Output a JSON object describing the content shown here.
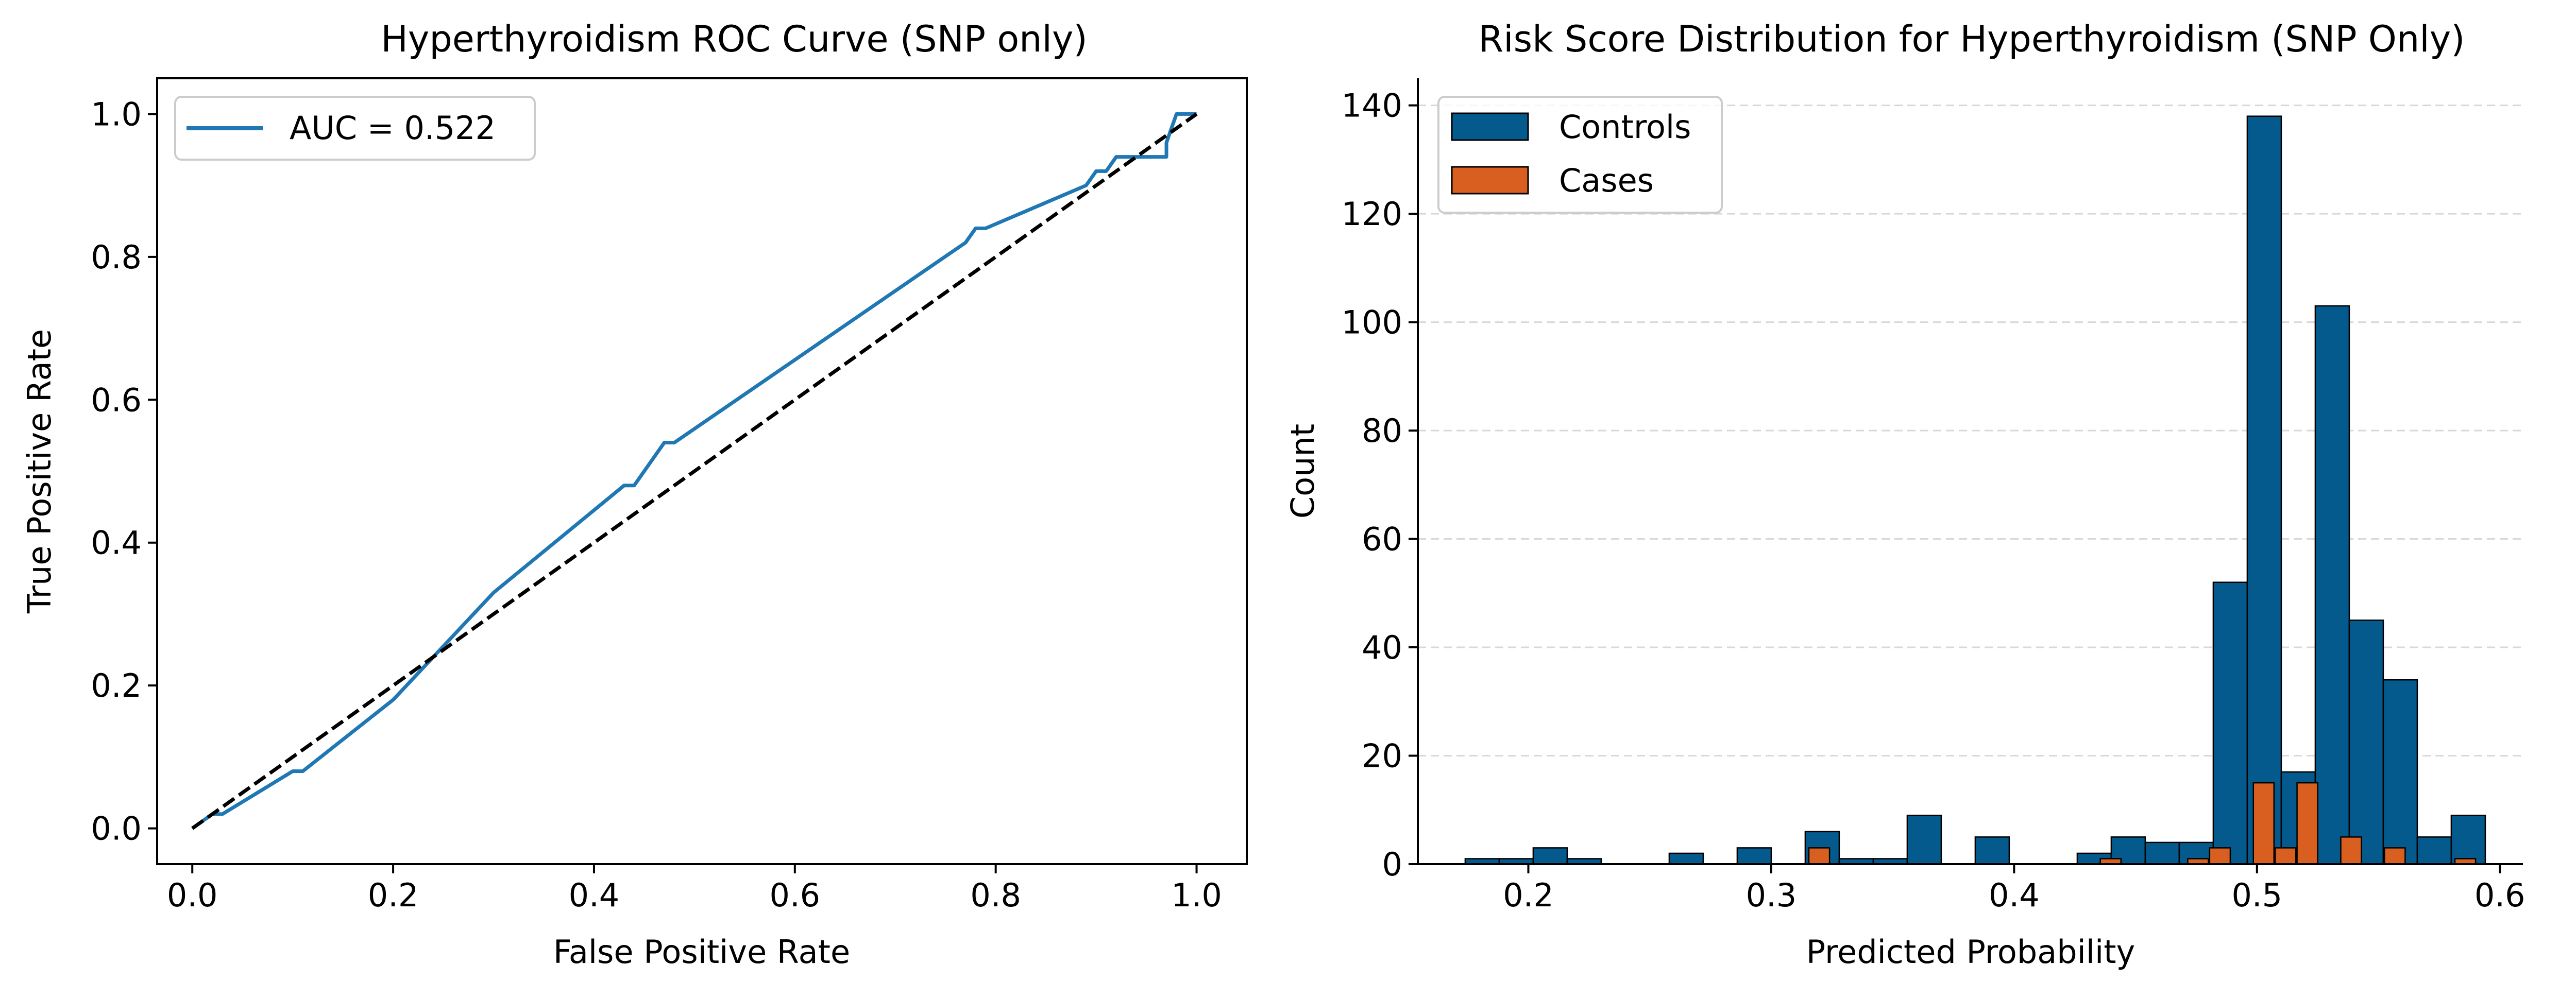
{
  "colors": {
    "roc_line": "#1f77b4",
    "diagonal": "#000000",
    "controls": "#045a8d",
    "cases": "#d95f20",
    "bar_edge": "#000000",
    "grid": "#d8d8d8"
  },
  "chart_data": [
    {
      "type": "line",
      "title": "Hyperthyroidism ROC Curve (SNP only)",
      "xlabel": "False Positive Rate",
      "ylabel": "True Positive Rate",
      "xlim": [
        -0.035,
        1.05
      ],
      "ylim": [
        -0.05,
        1.05
      ],
      "xticks": [
        0.0,
        0.2,
        0.4,
        0.6,
        0.8,
        1.0
      ],
      "xtick_labels": [
        "0.0",
        "0.2",
        "0.4",
        "0.6",
        "0.8",
        "1.0"
      ],
      "yticks": [
        0.0,
        0.2,
        0.4,
        0.6,
        0.8,
        1.0
      ],
      "ytick_labels": [
        "0.0",
        "0.2",
        "0.4",
        "0.6",
        "0.8",
        "1.0"
      ],
      "legend_position": "top-left",
      "series": [
        {
          "name": "AUC = 0.522",
          "style": "solid",
          "x": [
            0.0,
            0.02,
            0.03,
            0.1,
            0.11,
            0.2,
            0.3,
            0.43,
            0.44,
            0.47,
            0.48,
            0.77,
            0.78,
            0.79,
            0.89,
            0.9,
            0.91,
            0.92,
            0.93,
            0.94,
            0.96,
            0.97,
            0.97,
            0.98,
            1.0
          ],
          "y": [
            0.0,
            0.02,
            0.02,
            0.08,
            0.08,
            0.18,
            0.33,
            0.48,
            0.48,
            0.54,
            0.54,
            0.82,
            0.84,
            0.84,
            0.9,
            0.92,
            0.92,
            0.94,
            0.94,
            0.94,
            0.94,
            0.94,
            0.96,
            1.0,
            1.0
          ]
        },
        {
          "style": "dashed",
          "x": [
            0.0,
            1.0
          ],
          "y": [
            0.0,
            1.0
          ]
        }
      ]
    },
    {
      "type": "bar",
      "subtype": "overlaid-histogram",
      "title": "Risk Score Distribution for Hyperthyroidism (SNP Only)",
      "xlabel": "Predicted Probability",
      "ylabel": "Count",
      "xlim": [
        0.1545,
        0.6095
      ],
      "ylim": [
        0,
        145
      ],
      "xticks": [
        0.2,
        0.3,
        0.4,
        0.5,
        0.6
      ],
      "xtick_labels": [
        "0.2",
        "0.3",
        "0.4",
        "0.5",
        "0.6"
      ],
      "yticks": [
        0,
        20,
        40,
        60,
        80,
        100,
        120,
        140
      ],
      "ytick_labels": [
        "0",
        "20",
        "40",
        "60",
        "80",
        "100",
        "120",
        "140"
      ],
      "grid": "y-dashed",
      "legend_position": "top-left",
      "series": [
        {
          "name": "Controls",
          "bin_width": 0.014,
          "bins": [
            {
              "x0": 0.174,
              "count": 1
            },
            {
              "x0": 0.188,
              "count": 1
            },
            {
              "x0": 0.202,
              "count": 3
            },
            {
              "x0": 0.216,
              "count": 1
            },
            {
              "x0": 0.258,
              "count": 2
            },
            {
              "x0": 0.286,
              "count": 3
            },
            {
              "x0": 0.314,
              "count": 6
            },
            {
              "x0": 0.328,
              "count": 1
            },
            {
              "x0": 0.342,
              "count": 1
            },
            {
              "x0": 0.356,
              "count": 9
            },
            {
              "x0": 0.384,
              "count": 5
            },
            {
              "x0": 0.426,
              "count": 2
            },
            {
              "x0": 0.44,
              "count": 5
            },
            {
              "x0": 0.454,
              "count": 4
            },
            {
              "x0": 0.468,
              "count": 4
            },
            {
              "x0": 0.482,
              "count": 52
            },
            {
              "x0": 0.496,
              "count": 138
            },
            {
              "x0": 0.51,
              "count": 17
            },
            {
              "x0": 0.524,
              "count": 103
            },
            {
              "x0": 0.538,
              "count": 45
            },
            {
              "x0": 0.552,
              "count": 34
            },
            {
              "x0": 0.566,
              "count": 5
            },
            {
              "x0": 0.58,
              "count": 9
            }
          ]
        },
        {
          "name": "Cases",
          "bin_width": 0.0085,
          "bins": [
            {
              "x0": 0.3155,
              "count": 3
            },
            {
              "x0": 0.4355,
              "count": 1
            },
            {
              "x0": 0.4715,
              "count": 1
            },
            {
              "x0": 0.4805,
              "count": 3
            },
            {
              "x0": 0.4985,
              "count": 15
            },
            {
              "x0": 0.5075,
              "count": 3
            },
            {
              "x0": 0.5165,
              "count": 15
            },
            {
              "x0": 0.5345,
              "count": 5
            },
            {
              "x0": 0.5525,
              "count": 3
            },
            {
              "x0": 0.5815,
              "count": 1
            }
          ]
        }
      ]
    }
  ]
}
